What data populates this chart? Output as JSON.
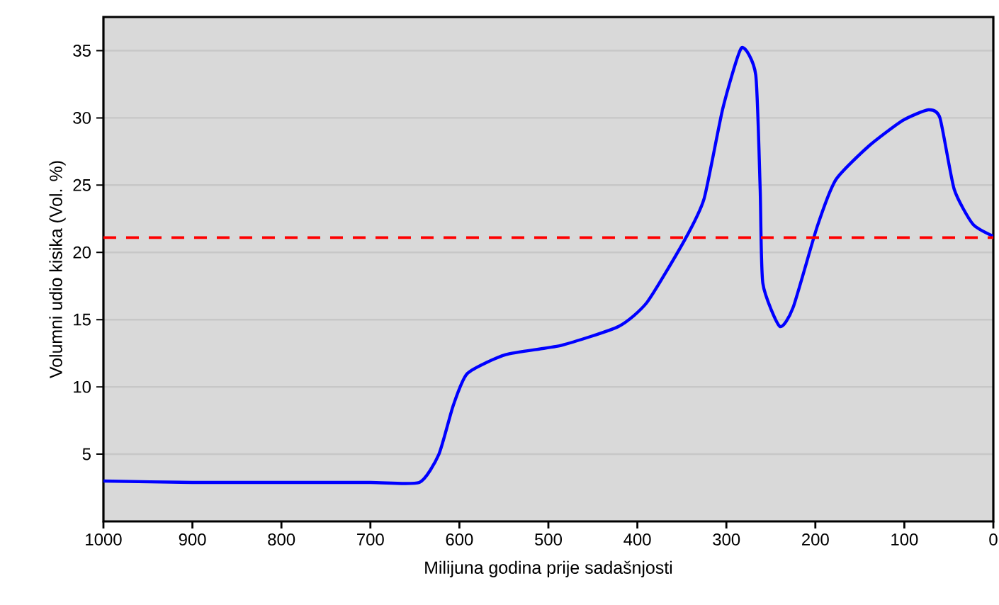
{
  "chart_data": {
    "type": "line",
    "xlabel": "Milijuna godina prije sadašnjosti",
    "ylabel": "Volumni udio kisika (Vol. %)",
    "xlim": [
      1000,
      0
    ],
    "xticks": [
      1000,
      900,
      800,
      700,
      600,
      500,
      400,
      300,
      200,
      100,
      0
    ],
    "ylim": [
      0,
      37.5
    ],
    "yticks": [
      5,
      10,
      15,
      20,
      25,
      30,
      35
    ],
    "grid": "y",
    "marker": "none",
    "line_style": "solid",
    "series": [
      {
        "color": "#0000ff",
        "x": [
          1000,
          900,
          800,
          700,
          645,
          623,
          607,
          591,
          548,
          485,
          421,
          389,
          347,
          325,
          304,
          283,
          267,
          262,
          259,
          240,
          225,
          198,
          177,
          140,
          102,
          73,
          60,
          44,
          23,
          0
        ],
        "values": [
          3.0,
          2.9,
          2.9,
          2.9,
          2.9,
          5.0,
          8.6,
          11.0,
          12.4,
          13.1,
          14.5,
          16.3,
          20.9,
          24.0,
          30.7,
          35.2,
          33.2,
          24.7,
          17.7,
          14.5,
          15.9,
          21.9,
          25.4,
          27.9,
          29.8,
          30.6,
          30.0,
          24.7,
          22.1,
          21.2
        ]
      }
    ],
    "ref_lines": [
      {
        "axis": "y",
        "value": 21.1,
        "color": "#ff0000",
        "line_style": "dashed"
      }
    ]
  }
}
